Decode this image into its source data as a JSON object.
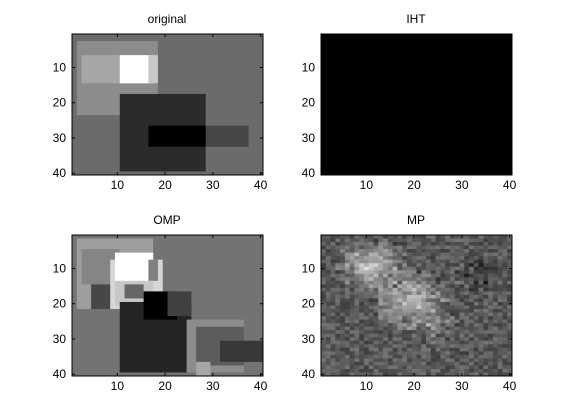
{
  "figure": {
    "background": "#ffffff",
    "axis_color": "#000000"
  },
  "chart_data": [
    {
      "type": "heatmap",
      "title": "original",
      "xlim": [
        0.5,
        40.5
      ],
      "ylim": [
        40.5,
        0.5
      ],
      "xticks": [
        10,
        20,
        30,
        40
      ],
      "yticks": [
        10,
        20,
        30,
        40
      ],
      "colormap": "gray",
      "background_value": 0.42,
      "rects": [
        {
          "x": [
            2,
            18
          ],
          "y": [
            3,
            23
          ],
          "value": 0.55
        },
        {
          "x": [
            3,
            15
          ],
          "y": [
            7,
            14
          ],
          "value": 0.65
        },
        {
          "x": [
            11,
            17
          ],
          "y": [
            7,
            14
          ],
          "value": 1.0
        },
        {
          "x": [
            17,
            18
          ],
          "y": [
            7,
            14
          ],
          "value": 0.78
        },
        {
          "x": [
            11,
            28
          ],
          "y": [
            18,
            39
          ],
          "value": 0.17
        },
        {
          "x": [
            17,
            37
          ],
          "y": [
            27,
            32
          ],
          "value": 0.28
        },
        {
          "x": [
            17,
            28
          ],
          "y": [
            27,
            32
          ],
          "value": 0.0
        }
      ]
    },
    {
      "type": "heatmap",
      "title": "IHT",
      "xlim": [
        0.5,
        40.5
      ],
      "ylim": [
        40.5,
        0.5
      ],
      "xticks": [
        10,
        20,
        30,
        40
      ],
      "yticks": [
        10,
        20,
        30,
        40
      ],
      "colormap": "gray",
      "background_value": 0.0,
      "rects": []
    },
    {
      "type": "heatmap",
      "title": "OMP",
      "xlim": [
        0.5,
        40.5
      ],
      "ylim": [
        40.5,
        0.5
      ],
      "xticks": [
        10,
        20,
        30,
        40
      ],
      "yticks": [
        10,
        20,
        30,
        40
      ],
      "colormap": "gray",
      "background_value": 0.45,
      "rects": [
        {
          "x": [
            2,
            17
          ],
          "y": [
            2,
            21
          ],
          "value": 0.62
        },
        {
          "x": [
            3,
            10
          ],
          "y": [
            5,
            14
          ],
          "value": 0.52
        },
        {
          "x": [
            5,
            9
          ],
          "y": [
            15,
            21
          ],
          "value": 0.28
        },
        {
          "x": [
            9,
            19
          ],
          "y": [
            8,
            21
          ],
          "value": 0.84
        },
        {
          "x": [
            10,
            17
          ],
          "y": [
            6,
            14
          ],
          "value": 1.0
        },
        {
          "x": [
            17,
            18
          ],
          "y": [
            8,
            13
          ],
          "value": 0.5
        },
        {
          "x": [
            10,
            17
          ],
          "y": [
            14,
            20
          ],
          "value": 0.78
        },
        {
          "x": [
            12,
            15
          ],
          "y": [
            15,
            18
          ],
          "value": 0.4
        },
        {
          "x": [
            11,
            25
          ],
          "y": [
            20,
            39
          ],
          "value": 0.14
        },
        {
          "x": [
            16,
            22
          ],
          "y": [
            17,
            24
          ],
          "value": 0.0
        },
        {
          "x": [
            21,
            25
          ],
          "y": [
            17,
            23
          ],
          "value": 0.25
        },
        {
          "x": [
            25,
            36
          ],
          "y": [
            25,
            39
          ],
          "value": 0.55
        },
        {
          "x": [
            27,
            36
          ],
          "y": [
            27,
            37
          ],
          "value": 0.36
        },
        {
          "x": [
            32,
            40
          ],
          "y": [
            31,
            36
          ],
          "value": 0.22
        },
        {
          "x": [
            27,
            29
          ],
          "y": [
            37,
            40
          ],
          "value": 0.65
        }
      ]
    },
    {
      "type": "heatmap",
      "title": "MP",
      "xlim": [
        0.5,
        40.5
      ],
      "ylim": [
        40.5,
        0.5
      ],
      "xticks": [
        10,
        20,
        30,
        40
      ],
      "yticks": [
        10,
        20,
        30,
        40
      ],
      "colormap": "gray",
      "texture": "noisy",
      "background_value": 0.35,
      "blobs": [
        {
          "cx": 11,
          "cy": 9,
          "r": 8,
          "value": 0.85
        },
        {
          "cx": 19,
          "cy": 19,
          "r": 9,
          "value": 0.8
        },
        {
          "cx": 24,
          "cy": 27,
          "r": 6,
          "value": 0.55
        },
        {
          "cx": 33,
          "cy": 12,
          "r": 5,
          "value": 0.2
        }
      ]
    }
  ]
}
